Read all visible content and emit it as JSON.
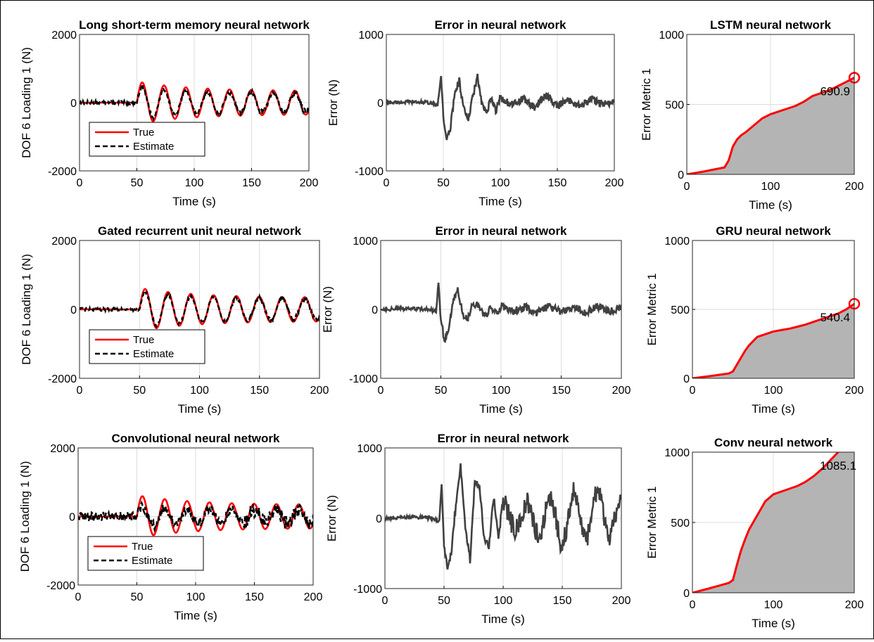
{
  "figure": {
    "x_axis_label": "Time (s)"
  },
  "chart_data": [
    {
      "type": "line",
      "title": "Long short-term memory neural network",
      "xlabel": "Time (s)",
      "ylabel": "DOF 6 Loading 1 (N)",
      "xlim": [
        0,
        200
      ],
      "ylim": [
        -2000,
        2000
      ],
      "xticks": [
        "0",
        "50",
        "100",
        "150",
        "200"
      ],
      "yticks": [
        "2000",
        "0",
        "-2000"
      ],
      "grid": true,
      "legend": {
        "position": "bottom-left",
        "entries": [
          "True",
          "Estimate"
        ]
      },
      "series": [
        {
          "name": "True",
          "color": "#ff0000",
          "style": "solid",
          "onset": 50,
          "peak_amplitude": 620,
          "period": 19
        },
        {
          "name": "Estimate",
          "color": "#000000",
          "style": "dashed",
          "amplitude": 480,
          "noise": 55
        }
      ]
    },
    {
      "type": "line",
      "title": "Error in neural network",
      "xlabel": "Time (s)",
      "ylabel": "Error (N)",
      "xlim": [
        0,
        200
      ],
      "ylim": [
        -1000,
        1000
      ],
      "xticks": [
        "0",
        "50",
        "100",
        "150",
        "200"
      ],
      "yticks": [
        "1000",
        "0",
        "-1000"
      ],
      "grid": true,
      "series": [
        {
          "name": "Error",
          "color": "#404040",
          "x": [
            0,
            20,
            40,
            45,
            48,
            50,
            53,
            56,
            60,
            64,
            68,
            72,
            76,
            80,
            84,
            88,
            92,
            96,
            100,
            110,
            120,
            130,
            140,
            150,
            160,
            170,
            180,
            190,
            200
          ],
          "y": [
            0,
            10,
            0,
            -50,
            400,
            -200,
            -550,
            -400,
            150,
            320,
            -100,
            -250,
            100,
            380,
            -50,
            -150,
            60,
            -120,
            80,
            -40,
            60,
            -80,
            120,
            -60,
            40,
            -50,
            60,
            -30,
            20
          ]
        }
      ]
    },
    {
      "type": "area",
      "title": "LSTM neural network",
      "xlabel": "Time (s)",
      "ylabel": "Error Metric 1",
      "xlim": [
        0,
        200
      ],
      "ylim": [
        0,
        1000
      ],
      "xticks": [
        "0",
        "100",
        "200"
      ],
      "yticks": [
        "1000",
        "500",
        "0"
      ],
      "grid": true,
      "series": [
        {
          "name": "Error Metric 1",
          "color": "#ff0000",
          "fill": "#b4b4b4",
          "x": [
            0,
            20,
            45,
            50,
            55,
            60,
            65,
            70,
            80,
            90,
            100,
            110,
            120,
            130,
            140,
            150,
            160,
            170,
            180,
            190,
            200
          ],
          "y": [
            0,
            20,
            50,
            100,
            200,
            250,
            280,
            300,
            350,
            400,
            430,
            450,
            470,
            490,
            520,
            560,
            580,
            600,
            630,
            660,
            690.9
          ]
        }
      ],
      "annotation": "690.9"
    },
    {
      "type": "line",
      "title": "Gated recurrent unit neural network",
      "xlabel": "Time (s)",
      "ylabel": "DOF 6 Loading 1 (N)",
      "xlim": [
        0,
        200
      ],
      "ylim": [
        -2000,
        2000
      ],
      "xticks": [
        "0",
        "50",
        "100",
        "150",
        "200"
      ],
      "yticks": [
        "2000",
        "0",
        "-2000"
      ],
      "grid": true,
      "legend": {
        "position": "bottom-left",
        "entries": [
          "True",
          "Estimate"
        ]
      },
      "series": [
        {
          "name": "True",
          "color": "#ff0000",
          "style": "solid",
          "onset": 50,
          "peak_amplitude": 620,
          "period": 19
        },
        {
          "name": "Estimate",
          "color": "#000000",
          "style": "dashed",
          "amplitude": 540,
          "noise": 45
        }
      ]
    },
    {
      "type": "line",
      "title": "Error in neural network",
      "xlabel": "Time (s)",
      "ylabel": "Error (N)",
      "xlim": [
        0,
        200
      ],
      "ylim": [
        -1000,
        1000
      ],
      "xticks": [
        "0",
        "50",
        "100",
        "150",
        "200"
      ],
      "yticks": [
        "1000",
        "0",
        "-1000"
      ],
      "grid": true,
      "series": [
        {
          "name": "Error",
          "color": "#404040",
          "x": [
            0,
            20,
            40,
            46,
            48,
            50,
            53,
            56,
            60,
            64,
            68,
            72,
            76,
            80,
            84,
            88,
            92,
            96,
            100,
            110,
            120,
            130,
            140,
            150,
            160,
            170,
            180,
            190,
            200
          ],
          "y": [
            0,
            10,
            0,
            -30,
            400,
            -150,
            -450,
            -300,
            100,
            280,
            -60,
            -150,
            50,
            80,
            -40,
            -80,
            40,
            -60,
            50,
            -30,
            40,
            -50,
            50,
            -40,
            40,
            -50,
            50,
            -30,
            20
          ]
        }
      ]
    },
    {
      "type": "area",
      "title": "GRU neural network",
      "xlabel": "Time (s)",
      "ylabel": "Error Metric 1",
      "xlim": [
        0,
        200
      ],
      "ylim": [
        0,
        1000
      ],
      "xticks": [
        "0",
        "100",
        "200"
      ],
      "yticks": [
        "1000",
        "500",
        "0"
      ],
      "grid": true,
      "series": [
        {
          "name": "Error Metric 1",
          "color": "#ff0000",
          "fill": "#b4b4b4",
          "x": [
            0,
            20,
            45,
            50,
            55,
            60,
            65,
            70,
            80,
            90,
            100,
            110,
            120,
            130,
            140,
            150,
            160,
            170,
            180,
            190,
            200
          ],
          "y": [
            0,
            15,
            35,
            50,
            100,
            150,
            200,
            240,
            300,
            320,
            340,
            350,
            360,
            375,
            390,
            410,
            430,
            450,
            470,
            500,
            540.4
          ]
        }
      ],
      "annotation": "540.4"
    },
    {
      "type": "line",
      "title": "Convolutional neural network",
      "xlabel": "Time (s)",
      "ylabel": "DOF 6 Loading 1 (N)",
      "xlim": [
        0,
        200
      ],
      "ylim": [
        -2000,
        2000
      ],
      "xticks": [
        "0",
        "50",
        "100",
        "150",
        "200"
      ],
      "yticks": [
        "2000",
        "0",
        "-2000"
      ],
      "grid": true,
      "legend": {
        "position": "bottom-left",
        "entries": [
          "True",
          "Estimate"
        ]
      },
      "series": [
        {
          "name": "True",
          "color": "#ff0000",
          "style": "solid",
          "onset": 50,
          "peak_amplitude": 620,
          "period": 19
        },
        {
          "name": "Estimate",
          "color": "#000000",
          "style": "dashed",
          "amplitude": 300,
          "noise": 140
        }
      ]
    },
    {
      "type": "line",
      "title": "Error in neural network",
      "xlabel": "Time (s)",
      "ylabel": "Error (N)",
      "xlim": [
        0,
        200
      ],
      "ylim": [
        -1000,
        1000
      ],
      "xticks": [
        "0",
        "50",
        "100",
        "150",
        "200"
      ],
      "yticks": [
        "1000",
        "0",
        "-1000"
      ],
      "grid": true,
      "series": [
        {
          "name": "Error",
          "color": "#404040",
          "x": [
            0,
            20,
            40,
            46,
            48,
            50,
            53,
            56,
            60,
            64,
            68,
            72,
            76,
            80,
            84,
            88,
            92,
            96,
            100,
            110,
            120,
            130,
            140,
            150,
            160,
            170,
            180,
            190,
            200
          ],
          "y": [
            0,
            20,
            0,
            -50,
            500,
            -400,
            -700,
            -500,
            200,
            750,
            -100,
            -600,
            500,
            450,
            -300,
            -400,
            300,
            -300,
            280,
            -200,
            250,
            -300,
            350,
            -450,
            450,
            -400,
            500,
            -350,
            400
          ]
        }
      ]
    },
    {
      "type": "area",
      "title": "Conv neural network",
      "xlabel": "Time (s)",
      "ylabel": "Error Metric 1",
      "xlim": [
        0,
        200
      ],
      "ylim": [
        0,
        1000
      ],
      "xticks": [
        "0",
        "100",
        "200"
      ],
      "yticks": [
        "1000",
        "500",
        "0"
      ],
      "grid": true,
      "series": [
        {
          "name": "Error Metric 1",
          "color": "#ff0000",
          "fill": "#b4b4b4",
          "x": [
            0,
            20,
            45,
            50,
            55,
            60,
            65,
            70,
            80,
            90,
            100,
            110,
            120,
            130,
            140,
            150,
            160,
            170,
            180,
            190,
            200
          ],
          "y": [
            0,
            30,
            70,
            90,
            200,
            300,
            380,
            450,
            550,
            650,
            700,
            720,
            740,
            760,
            790,
            830,
            880,
            940,
            1000,
            1050,
            1085.1
          ]
        }
      ],
      "annotation": "1085.1"
    }
  ]
}
